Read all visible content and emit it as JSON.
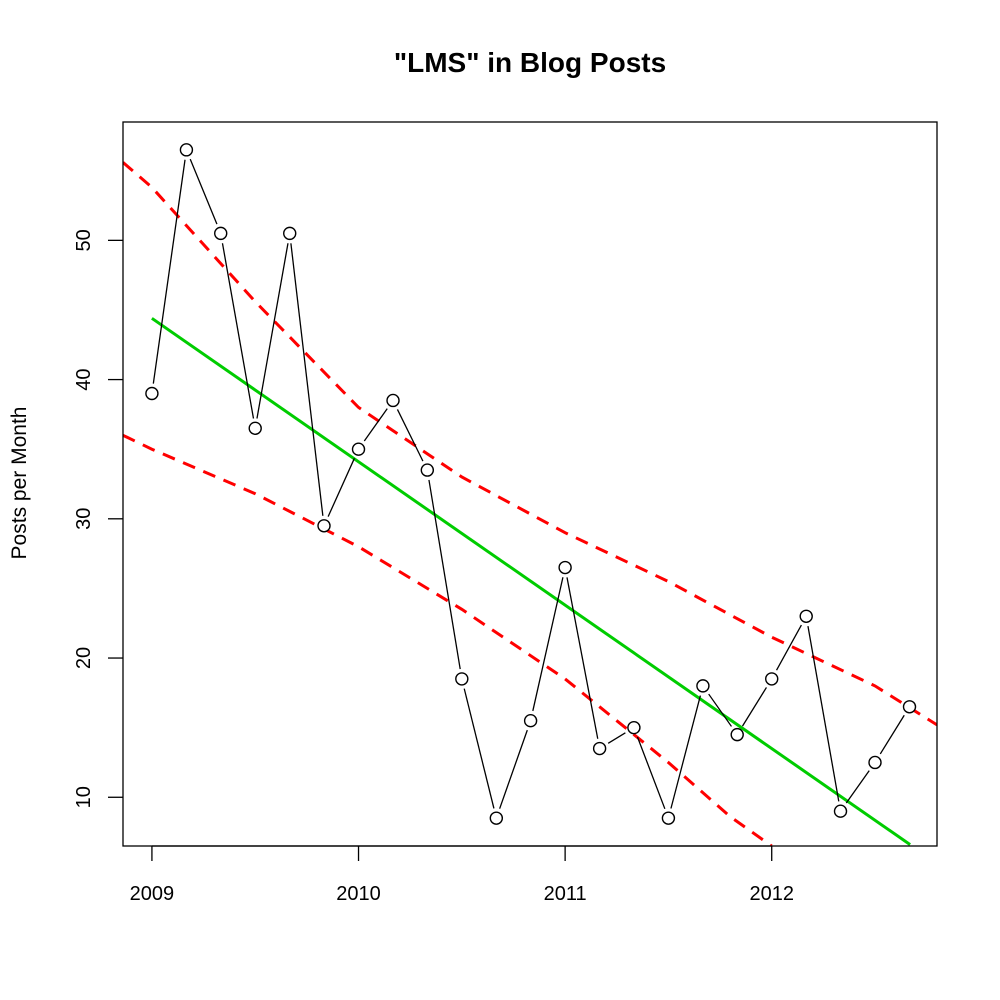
{
  "chart_data": {
    "type": "line",
    "title": "\"LMS\" in Blog Posts",
    "xlabel": "",
    "ylabel": "Posts per Month",
    "xlim": [
      2008.86,
      2012.8
    ],
    "ylim": [
      6.5,
      58.5
    ],
    "x_ticks": [
      2009,
      2010,
      2011,
      2012
    ],
    "x_tick_labels": [
      "2009",
      "2010",
      "2011",
      "2012"
    ],
    "y_ticks": [
      10,
      20,
      30,
      40,
      50
    ],
    "y_tick_labels": [
      "10",
      "20",
      "30",
      "40",
      "50"
    ],
    "grid": false,
    "series": [
      {
        "style": "black line with open circle markers",
        "color": "#000000",
        "x": [
          2009.0,
          2009.167,
          2009.333,
          2009.5,
          2009.667,
          2009.833,
          2010.0,
          2010.167,
          2010.333,
          2010.5,
          2010.667,
          2010.833,
          2011.0,
          2011.167,
          2011.333,
          2011.5,
          2011.667,
          2011.833,
          2012.0,
          2012.167,
          2012.333,
          2012.5,
          2012.667
        ],
        "y": [
          39,
          56.5,
          50.5,
          36.5,
          50.5,
          29.5,
          35,
          38.5,
          33.5,
          18.5,
          8.5,
          15.5,
          26.5,
          13.5,
          15,
          8.5,
          18,
          14.5,
          18.5,
          23,
          9,
          12.5,
          16.5
        ]
      },
      {
        "style": "solid green trend line",
        "color": "#00cc00",
        "x": [
          2009.0,
          2012.67
        ],
        "y": [
          44.4,
          6.6
        ]
      },
      {
        "style": "dashed red upper band",
        "color": "#ff0000",
        "x": [
          2008.86,
          2009.0,
          2009.5,
          2010.0,
          2010.5,
          2011.0,
          2011.5,
          2012.0,
          2012.5,
          2012.8
        ],
        "y": [
          55.6,
          53.8,
          45.6,
          38.0,
          33.0,
          29.0,
          25.5,
          21.5,
          18.0,
          15.2
        ]
      },
      {
        "style": "dashed red lower band",
        "color": "#ff0000",
        "x": [
          2008.86,
          2009.0,
          2009.5,
          2010.0,
          2010.5,
          2011.0,
          2011.5,
          2011.8,
          2012.0
        ],
        "y": [
          36.0,
          35.0,
          31.8,
          28.0,
          23.5,
          18.5,
          12.5,
          8.6,
          6.5
        ]
      }
    ]
  }
}
